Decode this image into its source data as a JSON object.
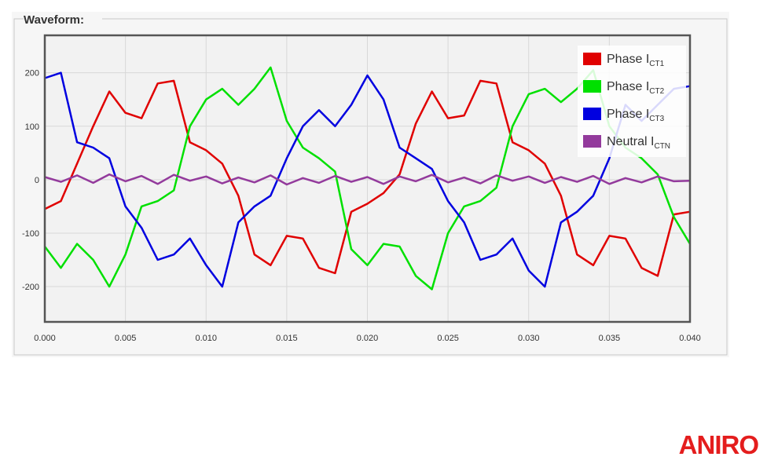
{
  "panel_title": "Waveform:",
  "logo": "ANIRO",
  "chart_data": {
    "type": "line",
    "x": [
      0,
      0.001,
      0.002,
      0.003,
      0.004,
      0.005,
      0.006,
      0.007,
      0.008,
      0.009,
      0.01,
      0.011,
      0.012,
      0.013,
      0.014,
      0.015,
      0.016,
      0.017,
      0.018,
      0.019,
      0.02,
      0.021,
      0.022,
      0.023,
      0.024,
      0.025,
      0.026,
      0.027,
      0.028,
      0.029,
      0.03,
      0.031,
      0.032,
      0.033,
      0.034,
      0.035,
      0.036,
      0.037,
      0.038,
      0.039,
      0.04
    ],
    "xlim": [
      0,
      0.04
    ],
    "xticks": [
      {
        "value": 0,
        "label": "0.000"
      },
      {
        "value": 0.005,
        "label": "0.005"
      },
      {
        "value": 0.01,
        "label": "0.010"
      },
      {
        "value": 0.015,
        "label": "0.015"
      },
      {
        "value": 0.02,
        "label": "0.020"
      },
      {
        "value": 0.025,
        "label": "0.025"
      },
      {
        "value": 0.03,
        "label": "0.030"
      },
      {
        "value": 0.035,
        "label": "0.035"
      },
      {
        "value": 0.04,
        "label": "0.040"
      }
    ],
    "ylim": [
      -266,
      270
    ],
    "yticks": [
      200,
      100,
      0,
      -100,
      -200
    ],
    "grid": true,
    "legend_position": "upper right",
    "series": [
      {
        "name": "Phase I",
        "subscript": "CT1",
        "color": "#e00000",
        "values": [
          -55,
          -40,
          30,
          100,
          165,
          125,
          115,
          180,
          185,
          70,
          55,
          30,
          -30,
          -140,
          -160,
          -105,
          -110,
          -165,
          -175,
          -60,
          -45,
          -25,
          10,
          105,
          165,
          115,
          120,
          185,
          180,
          70,
          55,
          30,
          -30,
          -140,
          -160,
          -105,
          -110,
          -165,
          -180,
          -65,
          -60
        ]
      },
      {
        "name": "Phase I",
        "subscript": "CT2",
        "color": "#00e000",
        "values": [
          -125,
          -165,
          -120,
          -150,
          -200,
          -140,
          -50,
          -40,
          -20,
          100,
          150,
          170,
          140,
          170,
          210,
          110,
          60,
          40,
          15,
          -130,
          -160,
          -120,
          -125,
          -180,
          -205,
          -100,
          -50,
          -40,
          -15,
          100,
          160,
          170,
          145,
          170,
          205,
          100,
          60,
          40,
          10,
          -70,
          -120
        ]
      },
      {
        "name": "Phase I",
        "subscript": "CT3",
        "color": "#0000e0",
        "values": [
          190,
          200,
          70,
          60,
          40,
          -50,
          -90,
          -150,
          -140,
          -110,
          -160,
          -200,
          -80,
          -50,
          -30,
          40,
          100,
          130,
          100,
          140,
          195,
          150,
          60,
          40,
          20,
          -40,
          -80,
          -150,
          -140,
          -110,
          -170,
          -200,
          -80,
          -60,
          -30,
          40,
          140,
          110,
          140,
          170,
          175
        ]
      },
      {
        "name": "Neutral I",
        "subscript": "CTN",
        "color": "#933a9c",
        "values": [
          5,
          -4,
          8,
          -6,
          10,
          -3,
          7,
          -8,
          9,
          -2,
          6,
          -7,
          4,
          -5,
          8,
          -9,
          3,
          -6,
          7,
          -4,
          5,
          -8,
          6,
          -3,
          9,
          -5,
          4,
          -7,
          8,
          -2,
          6,
          -6,
          5,
          -4,
          7,
          -8,
          3,
          -5,
          6,
          -3,
          -2
        ]
      }
    ]
  }
}
